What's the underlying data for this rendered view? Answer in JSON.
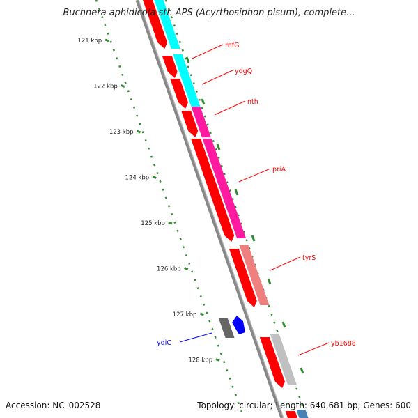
{
  "title": "Buchnera aphidicola str. APS (Acyrthosiphon pisum), complete...",
  "accession_text": "Accession: NC_002528",
  "summary_text": "Topology: circular; Length: 640,681 bp; Genes: 600",
  "colors": {
    "backbone": "#888888",
    "ruler": "#2e8b2e",
    "cds": "#ff0000",
    "cds_gray": "#666666",
    "cds_blue": "#0000ff",
    "cog_cyan": "#00ffff",
    "cog_magenta": "#ff1aa0",
    "cog_salmon": "#f08080",
    "cog_silver": "#c0c0c0",
    "cog_pink": "#ffc0c8",
    "cog_steelblue": "#4682b4",
    "label_red": "#ff0000",
    "label_blue": "#0000ff"
  },
  "ruler": {
    "ticks": [
      {
        "label": "121 kbp"
      },
      {
        "label": "122 kbp"
      },
      {
        "label": "123 kbp"
      },
      {
        "label": "124 kbp"
      },
      {
        "label": "125 kbp"
      },
      {
        "label": "126 kbp"
      },
      {
        "label": "127 kbp"
      },
      {
        "label": "128 kbp"
      }
    ]
  },
  "gene_labels": [
    {
      "name": "rnfG",
      "color": "label_red"
    },
    {
      "name": "ydgQ",
      "color": "label_red"
    },
    {
      "name": "nth",
      "color": "label_red"
    },
    {
      "name": "priA",
      "color": "label_red"
    },
    {
      "name": "tyrS",
      "color": "label_red"
    },
    {
      "name": "yb1688",
      "color": "label_red"
    },
    {
      "name": "ydiC",
      "color": "label_blue"
    }
  ]
}
